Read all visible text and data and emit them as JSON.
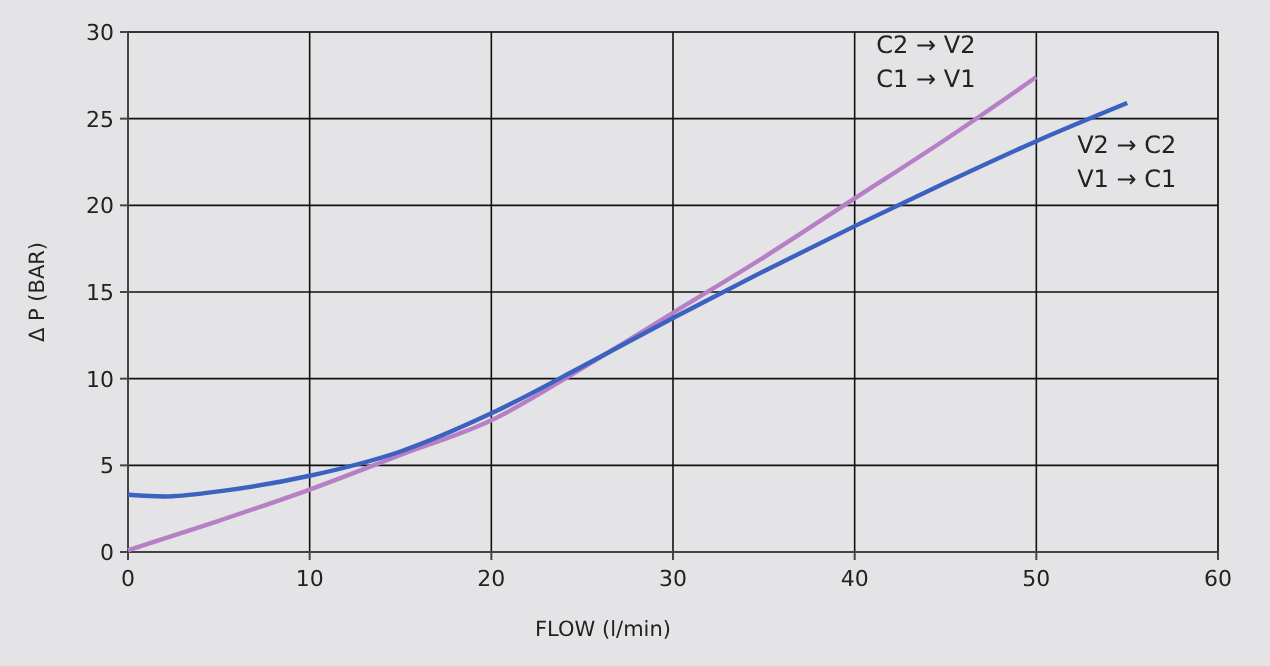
{
  "chart_data": {
    "type": "line",
    "xlabel": "FLOW  (l/min)",
    "ylabel": "Δ P (BAR)",
    "xlim": [
      0,
      60
    ],
    "xticks": [
      0,
      10,
      20,
      30,
      40,
      50,
      60
    ],
    "ylim": [
      0,
      30
    ],
    "yticks": [
      0,
      5,
      10,
      15,
      20,
      25,
      30
    ],
    "grid": true,
    "line_style": "solid",
    "marker": "none",
    "series": [
      {
        "name": "C2 → V2\nC1 → V1",
        "color": "#b77fc6",
        "x": [
          0,
          5,
          10,
          15,
          20,
          25,
          30,
          35,
          40,
          45,
          50
        ],
        "values": [
          0.1,
          1.8,
          3.6,
          5.6,
          7.6,
          10.6,
          13.8,
          17,
          20.4,
          23.8,
          27.4
        ]
      },
      {
        "name": "V2 → C2\nV1 → C1",
        "color": "#3b62c0",
        "x": [
          0,
          2,
          5,
          10,
          15,
          20,
          25,
          30,
          35,
          40,
          45,
          50,
          55
        ],
        "values": [
          3.3,
          3.2,
          3.5,
          4.4,
          5.8,
          8,
          10.7,
          13.5,
          16.2,
          18.8,
          21.3,
          23.7,
          25.9
        ]
      }
    ]
  }
}
